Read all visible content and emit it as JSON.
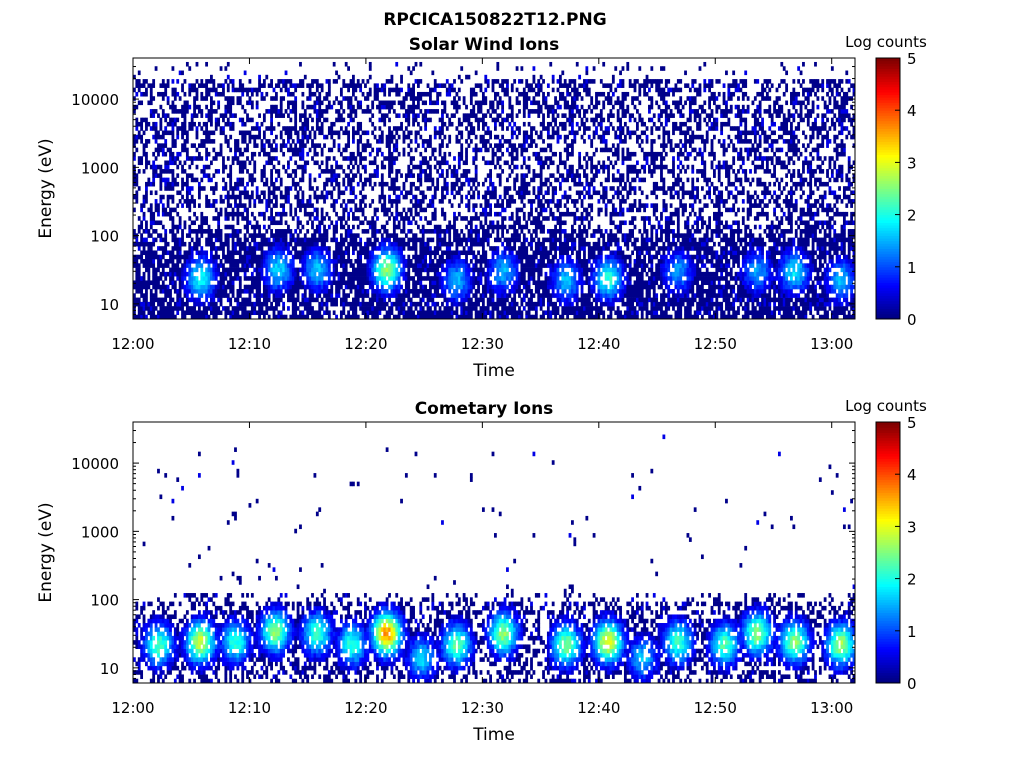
{
  "figure": {
    "filename_title": "RPCICA150822T12.PNG"
  },
  "chart_data": [
    {
      "type": "heatmap",
      "title": "Solar Wind Ions",
      "xlabel": "Time",
      "ylabel": "Energy (eV)",
      "x_ticks": [
        "12:00",
        "12:10",
        "12:20",
        "12:30",
        "12:40",
        "12:50",
        "13:00"
      ],
      "x_range_minutes": [
        0,
        62
      ],
      "y_ticks": [
        "10",
        "100",
        "1000",
        "10000"
      ],
      "y_tick_values": [
        10,
        100,
        1000,
        10000
      ],
      "y_range": [
        6,
        40000
      ],
      "y_scale": "log",
      "colorbar": {
        "label": "Log counts",
        "ticks": [
          "0",
          "1",
          "2",
          "3",
          "4",
          "5"
        ],
        "range": [
          0,
          5
        ],
        "colormap": "jet"
      },
      "background_density": 0.45,
      "peaks": [
        {
          "time_min": 5.8,
          "energy_ev": 24,
          "log_counts": 1.9
        },
        {
          "time_min": 12.5,
          "energy_ev": 32,
          "log_counts": 1.7
        },
        {
          "time_min": 15.8,
          "energy_ev": 32,
          "log_counts": 1.6
        },
        {
          "time_min": 21.8,
          "energy_ev": 32,
          "log_counts": 2.6
        },
        {
          "time_min": 27.8,
          "energy_ev": 22,
          "log_counts": 1.5
        },
        {
          "time_min": 31.8,
          "energy_ev": 30,
          "log_counts": 1.5
        },
        {
          "time_min": 37.2,
          "energy_ev": 22,
          "log_counts": 1.6
        },
        {
          "time_min": 40.8,
          "energy_ev": 24,
          "log_counts": 2.1
        },
        {
          "time_min": 46.8,
          "energy_ev": 30,
          "log_counts": 1.4
        },
        {
          "time_min": 53.6,
          "energy_ev": 30,
          "log_counts": 1.4
        },
        {
          "time_min": 56.8,
          "energy_ev": 30,
          "log_counts": 1.8
        },
        {
          "time_min": 60.8,
          "energy_ev": 22,
          "log_counts": 1.6
        }
      ]
    },
    {
      "type": "heatmap",
      "title": "Cometary Ions",
      "xlabel": "Time",
      "ylabel": "Energy (eV)",
      "x_ticks": [
        "12:00",
        "12:10",
        "12:20",
        "12:30",
        "12:40",
        "12:50",
        "13:00"
      ],
      "x_range_minutes": [
        0,
        62
      ],
      "y_ticks": [
        "10",
        "100",
        "1000",
        "10000"
      ],
      "y_tick_values": [
        10,
        100,
        1000,
        10000
      ],
      "y_range": [
        6,
        40000
      ],
      "y_scale": "log",
      "colorbar": {
        "label": "Log counts",
        "ticks": [
          "0",
          "1",
          "2",
          "3",
          "4",
          "5"
        ],
        "range": [
          0,
          5
        ],
        "colormap": "jet"
      },
      "background_density": 0.01,
      "peaks": [
        {
          "time_min": 2.2,
          "energy_ev": 22,
          "log_counts": 2.3
        },
        {
          "time_min": 5.8,
          "energy_ev": 24,
          "log_counts": 2.9
        },
        {
          "time_min": 8.8,
          "energy_ev": 24,
          "log_counts": 2.1
        },
        {
          "time_min": 12.2,
          "energy_ev": 34,
          "log_counts": 2.6
        },
        {
          "time_min": 15.8,
          "energy_ev": 32,
          "log_counts": 2.2
        },
        {
          "time_min": 18.8,
          "energy_ev": 22,
          "log_counts": 2.1
        },
        {
          "time_min": 21.8,
          "energy_ev": 32,
          "log_counts": 3.7
        },
        {
          "time_min": 24.8,
          "energy_ev": 14,
          "log_counts": 1.7
        },
        {
          "time_min": 27.8,
          "energy_ev": 22,
          "log_counts": 2.4
        },
        {
          "time_min": 31.8,
          "energy_ev": 32,
          "log_counts": 2.6
        },
        {
          "time_min": 37.2,
          "energy_ev": 22,
          "log_counts": 2.5
        },
        {
          "time_min": 40.8,
          "energy_ev": 24,
          "log_counts": 3.1
        },
        {
          "time_min": 43.8,
          "energy_ev": 14,
          "log_counts": 1.6
        },
        {
          "time_min": 46.8,
          "energy_ev": 24,
          "log_counts": 2.2
        },
        {
          "time_min": 50.8,
          "energy_ev": 22,
          "log_counts": 2.3
        },
        {
          "time_min": 53.6,
          "energy_ev": 32,
          "log_counts": 2.6
        },
        {
          "time_min": 56.8,
          "energy_ev": 24,
          "log_counts": 2.6
        },
        {
          "time_min": 60.8,
          "energy_ev": 22,
          "log_counts": 2.7
        }
      ]
    }
  ]
}
